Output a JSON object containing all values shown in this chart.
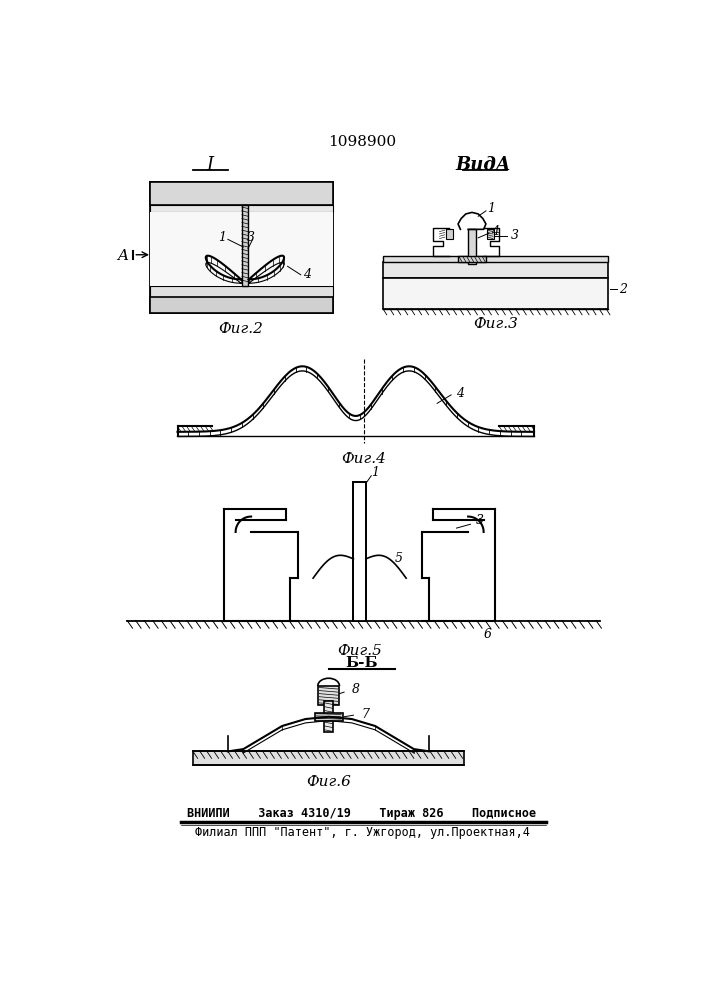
{
  "title_number": "1098900",
  "section1_label": "I",
  "sectionA_label": "ВидА",
  "fig2_label": "Фиг.2",
  "fig3_label": "Фиг.3",
  "fig4_label": "Фиг.4",
  "fig5_label": "Фиг.5",
  "fig6_label": "Фиг.6",
  "bb_label": "Б-Б",
  "footer_line1": "ВНИИПИ    Заказ 4310/19    Тираж 826    Подписное",
  "footer_line2": "Филиал ППП \"Патент\", г. Ужгород, ул.Проектная,4",
  "bg_color": "#ffffff",
  "line_color": "#000000"
}
